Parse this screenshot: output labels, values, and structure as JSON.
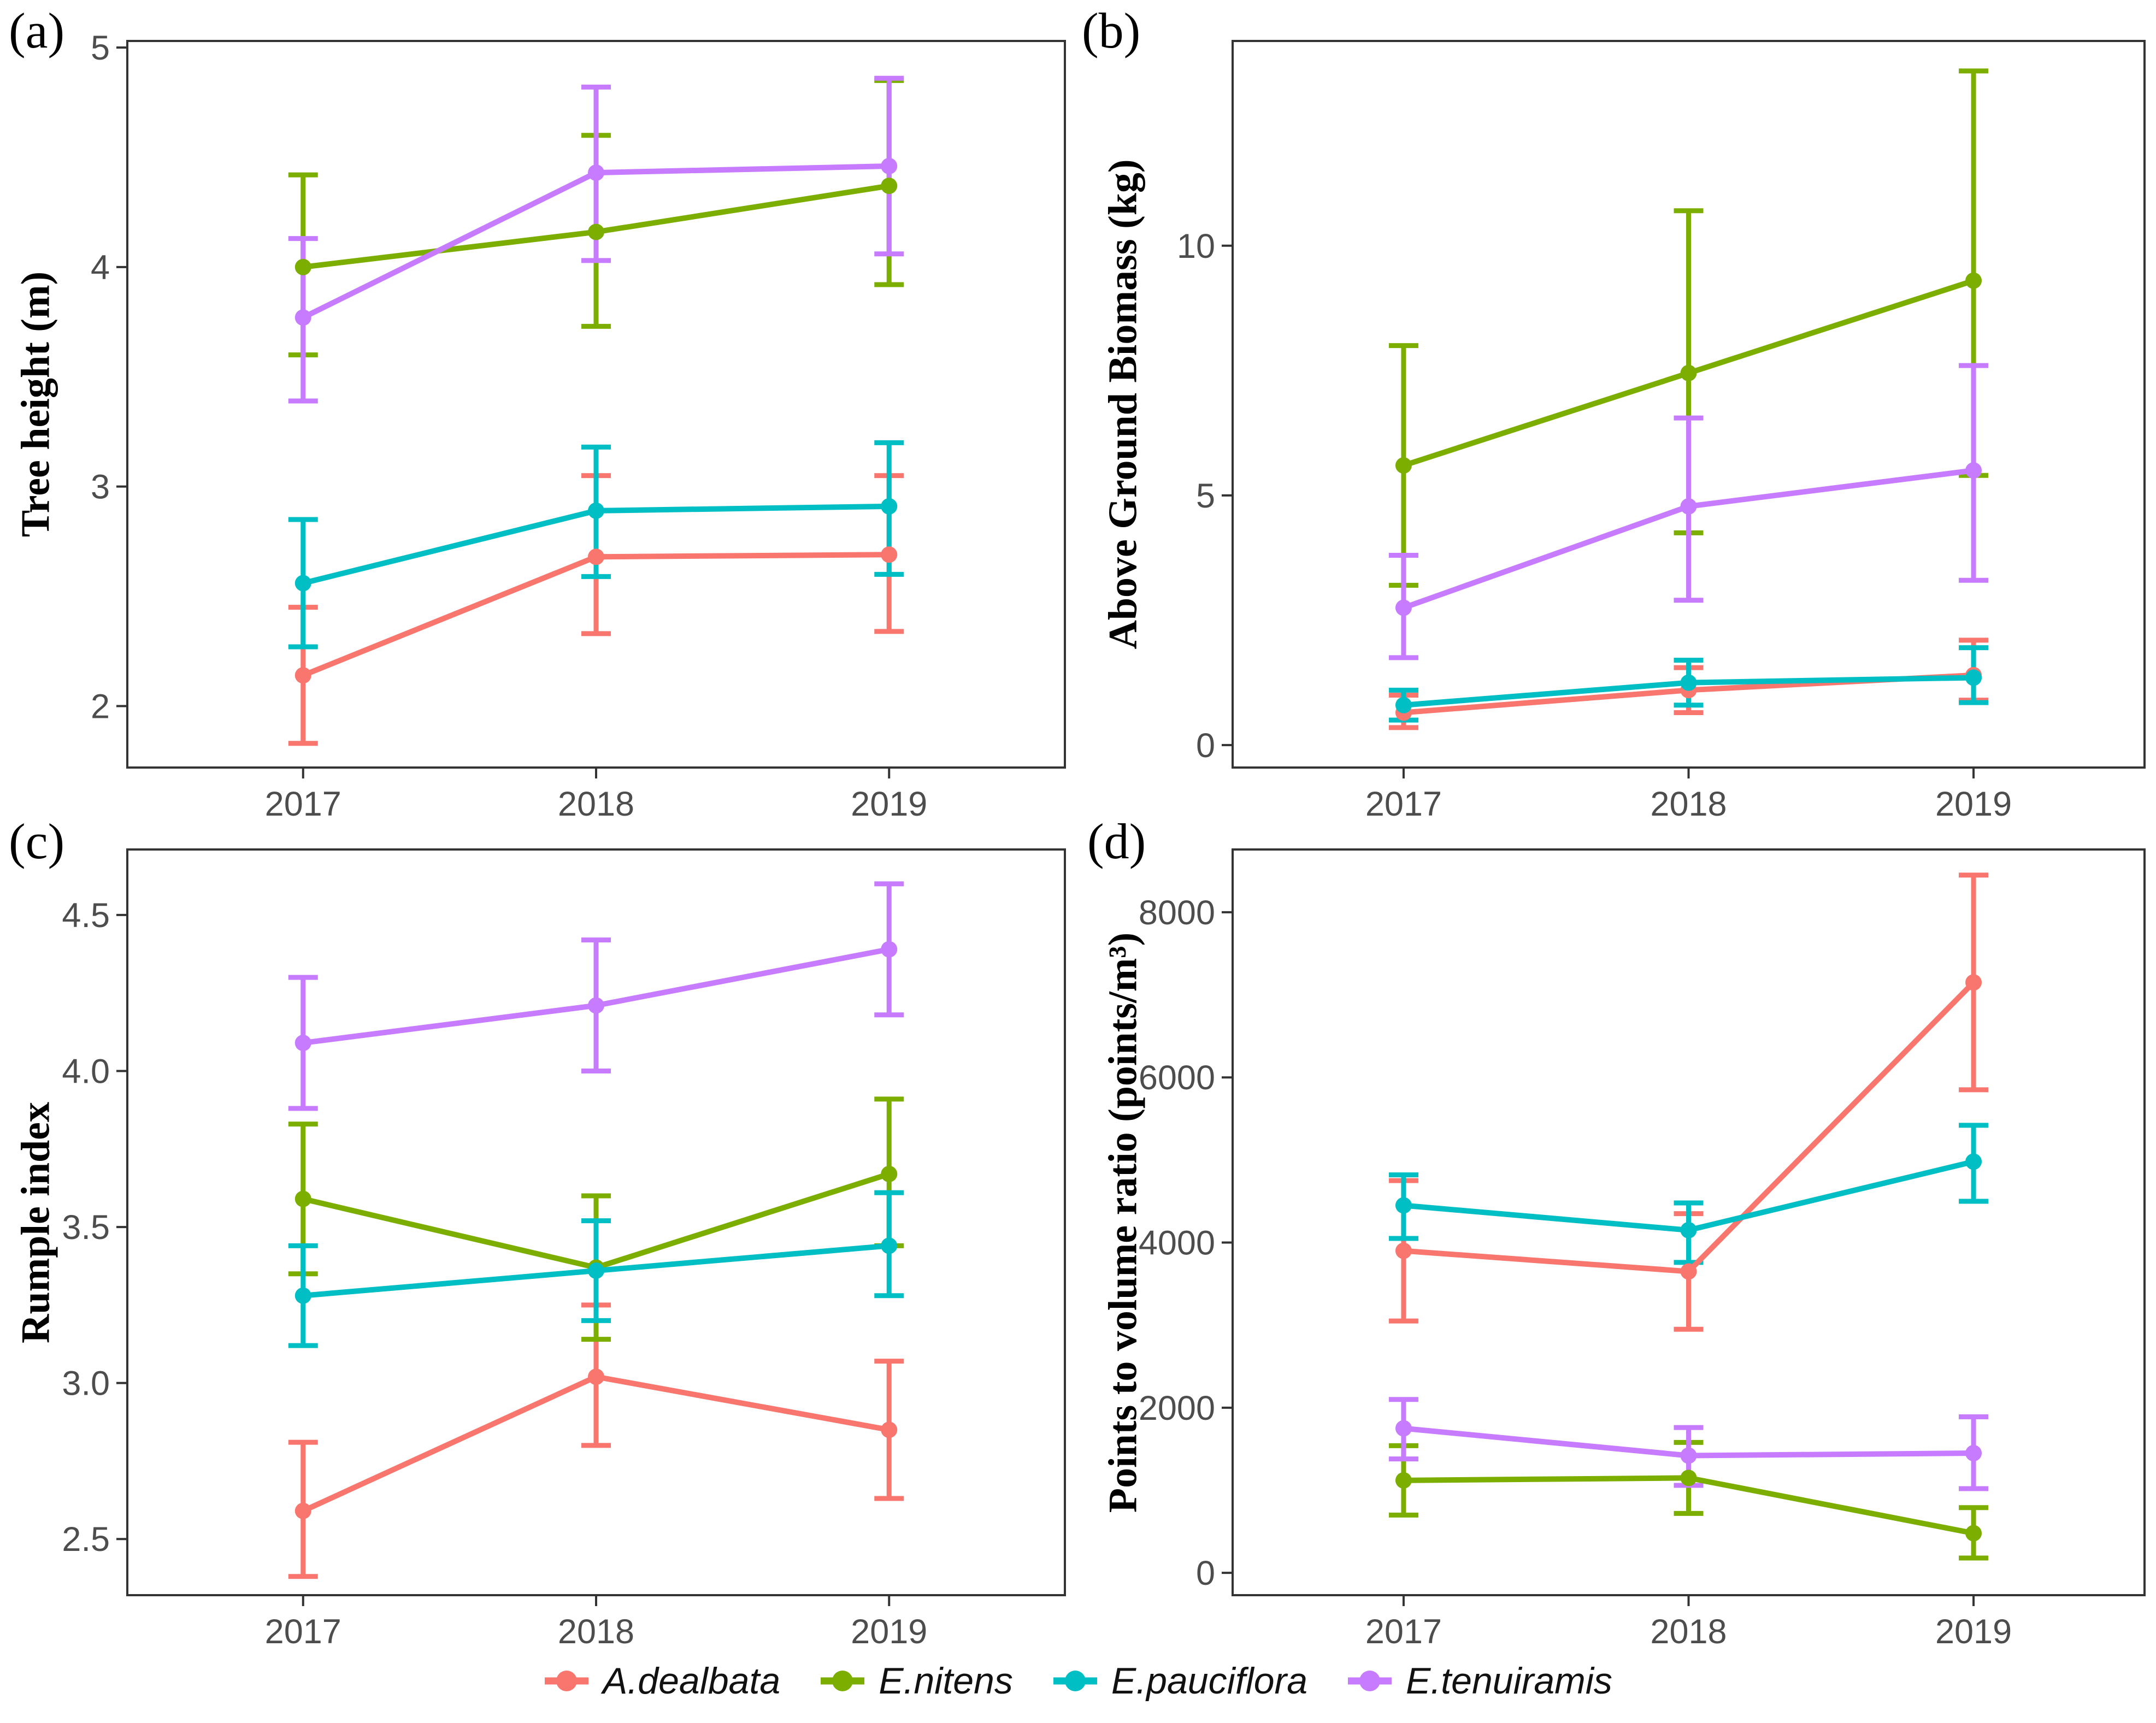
{
  "styles": {
    "background": "#ffffff",
    "axis_color": "#333333",
    "tick_label_color": "#4d4d4d",
    "palette": {
      "A.dealbata": "#F8766D",
      "E.nitens": "#7CAE00",
      "E.pauciflora": "#00BFC4",
      "E.tenuiramis": "#C77CFF"
    }
  },
  "legend": {
    "items": [
      {
        "label": "A.dealbata",
        "color": "#F8766D"
      },
      {
        "label": "E.nitens",
        "color": "#7CAE00"
      },
      {
        "label": "E.pauciflora",
        "color": "#00BFC4"
      },
      {
        "label": "E.tenuiramis",
        "color": "#C77CFF"
      }
    ]
  },
  "chart_data": [
    {
      "type": "line",
      "panel_label": "(a)",
      "ylabel": "Tree height (m)",
      "xlabel": "",
      "error_bars": true,
      "grid": false,
      "categories": [
        "2017",
        "2018",
        "2019"
      ],
      "yticks": [
        2,
        3,
        4,
        5
      ],
      "ytick_labels": [
        "2",
        "3",
        "4",
        "5"
      ],
      "ylim": [
        1.72,
        5.03
      ],
      "series": [
        {
          "name": "A.dealbata",
          "color": "#F8766D",
          "values": [
            2.14,
            2.68,
            2.69
          ],
          "err_low": [
            1.83,
            2.33,
            2.34
          ],
          "err_high": [
            2.45,
            3.05,
            3.05
          ]
        },
        {
          "name": "E.nitens",
          "color": "#7CAE00",
          "values": [
            4.0,
            4.16,
            4.37
          ],
          "err_low": [
            3.6,
            3.73,
            3.92
          ],
          "err_high": [
            4.42,
            4.6,
            4.85
          ]
        },
        {
          "name": "E.pauciflora",
          "color": "#00BFC4",
          "values": [
            2.56,
            2.89,
            2.91
          ],
          "err_low": [
            2.27,
            2.59,
            2.6
          ],
          "err_high": [
            2.85,
            3.18,
            3.2
          ]
        },
        {
          "name": "E.tenuiramis",
          "color": "#C77CFF",
          "values": [
            3.77,
            4.43,
            4.46
          ],
          "err_low": [
            3.39,
            4.03,
            4.06
          ],
          "err_high": [
            4.13,
            4.82,
            4.86
          ]
        }
      ]
    },
    {
      "type": "line",
      "panel_label": "(b)",
      "ylabel": "Above Ground Biomass (kg)",
      "xlabel": "",
      "error_bars": true,
      "grid": false,
      "categories": [
        "2017",
        "2018",
        "2019"
      ],
      "yticks": [
        0,
        5,
        10
      ],
      "ytick_labels": [
        "0",
        "5",
        "10"
      ],
      "ylim": [
        -0.45,
        14.1
      ],
      "series": [
        {
          "name": "A.dealbata",
          "color": "#F8766D",
          "values": [
            0.65,
            1.1,
            1.4
          ],
          "err_low": [
            0.35,
            0.65,
            0.9
          ],
          "err_high": [
            1.0,
            1.55,
            2.1
          ]
        },
        {
          "name": "E.nitens",
          "color": "#7CAE00",
          "values": [
            5.6,
            7.45,
            9.3
          ],
          "err_low": [
            3.2,
            4.25,
            5.4
          ],
          "err_high": [
            8.0,
            10.7,
            13.5
          ]
        },
        {
          "name": "E.pauciflora",
          "color": "#00BFC4",
          "values": [
            0.8,
            1.25,
            1.35
          ],
          "err_low": [
            0.5,
            0.8,
            0.85
          ],
          "err_high": [
            1.1,
            1.7,
            1.95
          ]
        },
        {
          "name": "E.tenuiramis",
          "color": "#C77CFF",
          "values": [
            2.75,
            4.78,
            5.5
          ],
          "err_low": [
            1.75,
            2.9,
            3.3
          ],
          "err_high": [
            3.8,
            6.55,
            7.6
          ]
        }
      ]
    },
    {
      "type": "line",
      "panel_label": "(c)",
      "ylabel": "Rumple index",
      "xlabel": "",
      "error_bars": true,
      "grid": false,
      "categories": [
        "2017",
        "2018",
        "2019"
      ],
      "yticks": [
        2.5,
        3.0,
        3.5,
        4.0,
        4.5
      ],
      "ytick_labels": [
        "2.5",
        "3.0",
        "3.5",
        "4.0",
        "4.5"
      ],
      "ylim": [
        2.32,
        4.71
      ],
      "series": [
        {
          "name": "A.dealbata",
          "color": "#F8766D",
          "values": [
            2.59,
            3.02,
            2.85
          ],
          "err_low": [
            2.38,
            2.8,
            2.63
          ],
          "err_high": [
            2.81,
            3.25,
            3.07
          ]
        },
        {
          "name": "E.nitens",
          "color": "#7CAE00",
          "values": [
            3.59,
            3.37,
            3.67
          ],
          "err_low": [
            3.35,
            3.14,
            3.44
          ],
          "err_high": [
            3.83,
            3.6,
            3.91
          ]
        },
        {
          "name": "E.pauciflora",
          "color": "#00BFC4",
          "values": [
            3.28,
            3.36,
            3.44
          ],
          "err_low": [
            3.12,
            3.2,
            3.28
          ],
          "err_high": [
            3.44,
            3.52,
            3.61
          ]
        },
        {
          "name": "E.tenuiramis",
          "color": "#C77CFF",
          "values": [
            4.09,
            4.21,
            4.39
          ],
          "err_low": [
            3.88,
            4.0,
            4.18
          ],
          "err_high": [
            4.3,
            4.42,
            4.6
          ]
        }
      ]
    },
    {
      "type": "line",
      "panel_label": "(d)",
      "ylabel": "Points to volume ratio (points/m³)",
      "xlabel": "",
      "error_bars": true,
      "grid": false,
      "categories": [
        "2017",
        "2018",
        "2019"
      ],
      "yticks": [
        0,
        2000,
        4000,
        6000,
        8000
      ],
      "ytick_labels": [
        "0",
        "2000",
        "4000",
        "6000",
        "8000"
      ],
      "ylim": [
        -270,
        8760
      ],
      "series": [
        {
          "name": "A.dealbata",
          "color": "#F8766D",
          "values": [
            3900,
            3650,
            7150
          ],
          "err_low": [
            3050,
            2950,
            5850
          ],
          "err_high": [
            4750,
            4350,
            8450
          ]
        },
        {
          "name": "E.nitens",
          "color": "#7CAE00",
          "values": [
            1120,
            1150,
            480
          ],
          "err_low": [
            700,
            720,
            180
          ],
          "err_high": [
            1540,
            1580,
            790
          ]
        },
        {
          "name": "E.pauciflora",
          "color": "#00BFC4",
          "values": [
            4450,
            4150,
            4980
          ],
          "err_low": [
            4050,
            3760,
            4500
          ],
          "err_high": [
            4820,
            4480,
            5420
          ]
        },
        {
          "name": "E.tenuiramis",
          "color": "#C77CFF",
          "values": [
            1750,
            1420,
            1450
          ],
          "err_low": [
            1380,
            1060,
            1020
          ],
          "err_high": [
            2100,
            1760,
            1890
          ]
        }
      ]
    }
  ]
}
